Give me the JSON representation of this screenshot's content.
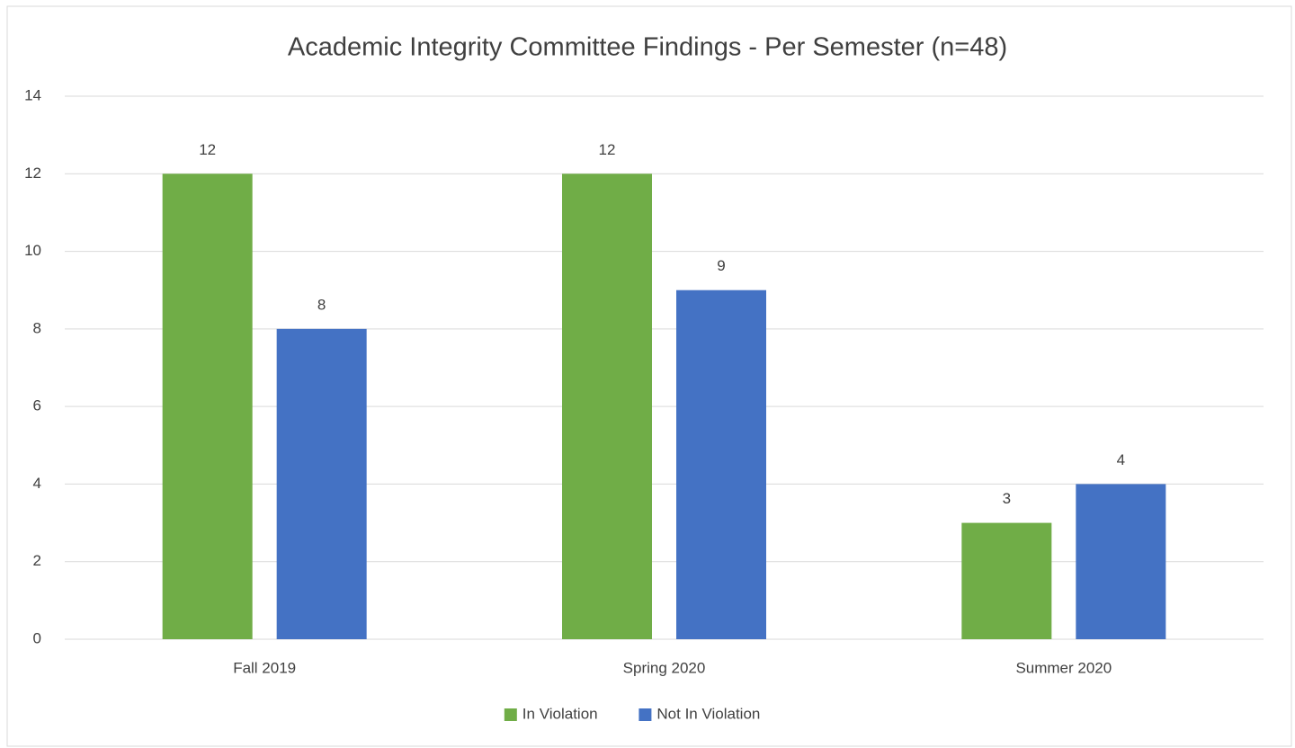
{
  "chart_data": {
    "type": "bar",
    "title": "Academic Integrity Committee Findings - Per Semester (n=48)",
    "categories": [
      "Fall 2019",
      "Spring 2020",
      "Summer 2020"
    ],
    "series": [
      {
        "name": "In Violation",
        "color": "#70ad47",
        "values": [
          12,
          12,
          3
        ]
      },
      {
        "name": "Not In Violation",
        "color": "#4472c4",
        "values": [
          8,
          9,
          4
        ]
      }
    ],
    "ylim": [
      0,
      14
    ],
    "yticks": [
      0,
      2,
      4,
      6,
      8,
      10,
      12,
      14
    ],
    "grid": true,
    "legend": "bottom"
  }
}
